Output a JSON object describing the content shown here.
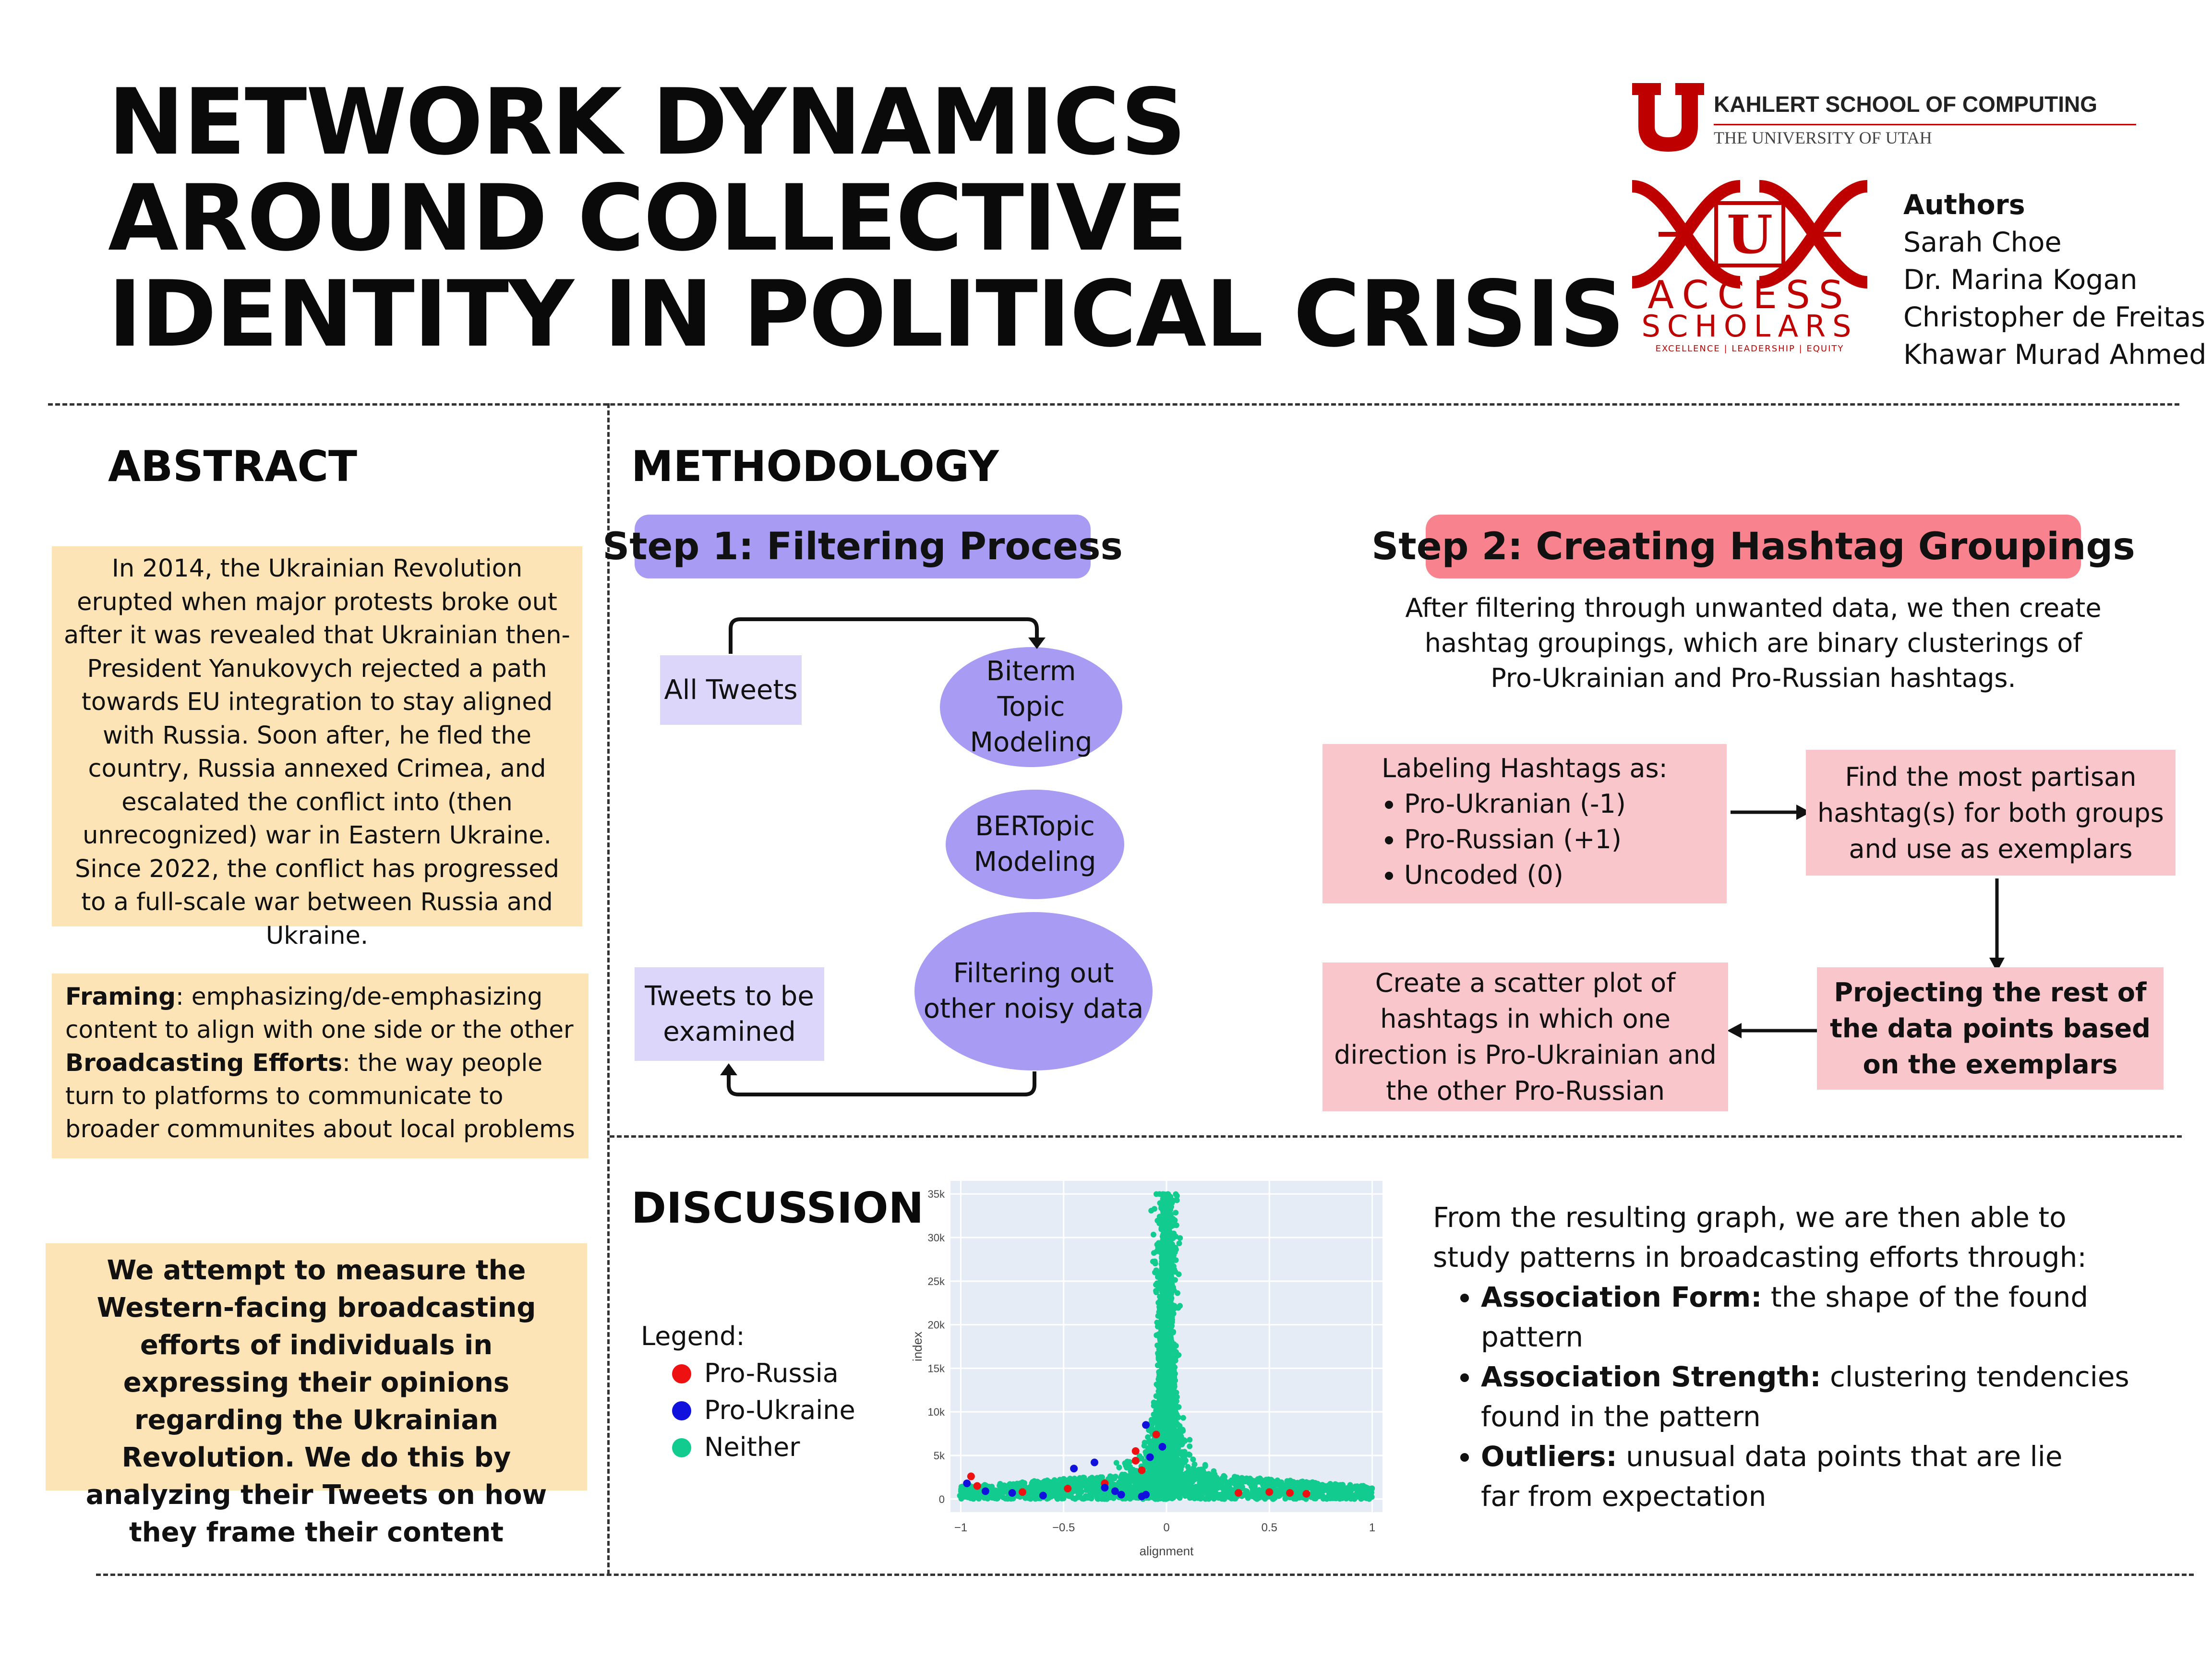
{
  "title": {
    "line1": "NETWORK DYNAMICS",
    "line2": "AROUND COLLECTIVE",
    "line3": "IDENTITY IN POLITICAL CRISIS"
  },
  "logos": {
    "school_name": "KAHLERT SCHOOL OF COMPUTING",
    "university": "THE UNIVERSITY OF UTAH",
    "access": "ACCESS",
    "scholars": "SCHOLARS",
    "tagline": "EXCELLENCE | LEADERSHIP | EQUITY",
    "u_letter": "U",
    "brand_red": "#be0000"
  },
  "authors": {
    "heading": "Authors",
    "names": [
      "Sarah Choe",
      "Dr. Marina Kogan",
      "Christopher de Freitas",
      "Khawar Murad Ahmed"
    ]
  },
  "abstract": {
    "heading": "ABSTRACT",
    "paragraph": "In 2014, the Ukrainian Revolution erupted when major protests broke out after it was revealed that Ukrainian then-President Yanukovych rejected a path towards EU integration to stay aligned with Russia. Soon after, he fled the country, Russia annexed Crimea, and escalated the conflict into (then unrecognized) war in Eastern Ukraine. Since 2022, the conflict has progressed to a full-scale war between Russia and Ukraine.",
    "framing_term": "Framing",
    "framing_def": ": emphasizing/de-emphasizing content to align with one side or the other",
    "broadcasting_term": "Broadcasting Efforts",
    "broadcasting_def": ": the way people turn to platforms to communicate to broader communites about local problems",
    "aim": "We attempt to measure the Western-facing broadcasting efforts of individuals in expressing their opinions regarding the Ukrainian Revolution. We do this by analyzing their Tweets on how they frame their content"
  },
  "methodology": {
    "heading": "METHODOLOGY",
    "step1": {
      "title": "Step 1: Filtering Process",
      "all_tweets": "All Tweets",
      "biterm": "Biterm Topic Modeling",
      "bertopic": "BERTopic Modeling",
      "filtering": "Filtering out other noisy data",
      "examined": "Tweets to be examined"
    },
    "step2": {
      "title": "Step 2: Creating Hashtag Groupings",
      "intro": "After filtering through unwanted data, we then create hashtag groupings, which are binary clusterings of Pro-Ukrainian and Pro-Russian hashtags.",
      "labeling_head": "Labeling Hashtags as:",
      "labels": [
        "Pro-Ukranian (-1)",
        "Pro-Russian (+1)",
        "Uncoded (0)"
      ],
      "partisan": "Find the most partisan hashtag(s) for both groups and use as exemplars",
      "projecting": "Projecting the rest of the data points based on the exemplars",
      "scatter": "Create a scatter plot of hashtags in which one direction is Pro-Ukrainian and the other Pro-Russian"
    }
  },
  "discussion": {
    "heading": "DISCUSSION",
    "legend_head": "Legend:",
    "intro": "From the resulting graph, we are then able to study patterns in broadcasting efforts through:",
    "items": [
      {
        "term": "Association Form:",
        "text": " the shape of the found pattern"
      },
      {
        "term": "Association Strength:",
        "text": " clustering tendencies found in the pattern"
      },
      {
        "term": "Outliers:",
        "text": " unusual data points that are lie far from expectation"
      }
    ]
  },
  "chart_data": {
    "type": "scatter",
    "xlabel": "alignment",
    "ylabel": "index",
    "xlim": [
      -1.05,
      1.05
    ],
    "ylim": [
      -1500,
      36500
    ],
    "x_ticks": [
      -1,
      -0.5,
      0,
      0.5,
      1
    ],
    "x_tick_labels": [
      "−1",
      "−0.5",
      "0",
      "0.5",
      "1"
    ],
    "y_ticks": [
      0,
      5000,
      10000,
      15000,
      20000,
      25000,
      30000,
      35000
    ],
    "y_tick_labels": [
      "0",
      "5k",
      "10k",
      "15k",
      "20k",
      "25k",
      "30k",
      "35k"
    ],
    "grid": true,
    "legend_placement": "left",
    "series": [
      {
        "name": "Pro-Russia",
        "color": "#ee1111",
        "points": [
          [
            -0.95,
            2600
          ],
          [
            -0.92,
            1500
          ],
          [
            -0.7,
            800
          ],
          [
            -0.48,
            1200
          ],
          [
            -0.3,
            1800
          ],
          [
            -0.15,
            5500
          ],
          [
            -0.15,
            4400
          ],
          [
            -0.05,
            7400
          ],
          [
            -0.12,
            3300
          ],
          [
            0.35,
            700
          ],
          [
            0.5,
            800
          ],
          [
            0.6,
            700
          ],
          [
            0.68,
            600
          ]
        ]
      },
      {
        "name": "Pro-Ukraine",
        "color": "#1111dd",
        "points": [
          [
            -0.97,
            1800
          ],
          [
            -0.88,
            900
          ],
          [
            -0.75,
            700
          ],
          [
            -0.6,
            400
          ],
          [
            -0.45,
            3500
          ],
          [
            -0.35,
            4200
          ],
          [
            -0.3,
            1300
          ],
          [
            -0.25,
            900
          ],
          [
            -0.22,
            500
          ],
          [
            -0.1,
            8500
          ],
          [
            -0.08,
            4800
          ],
          [
            -0.1,
            500
          ],
          [
            -0.12,
            300
          ],
          [
            -0.02,
            6000
          ]
        ]
      },
      {
        "name": "Neither",
        "color": "#12cc8f",
        "points": "dense cloud concentrated near alignment 0, spanning index 0–35k, spreading to ±1 below 5k"
      }
    ]
  }
}
